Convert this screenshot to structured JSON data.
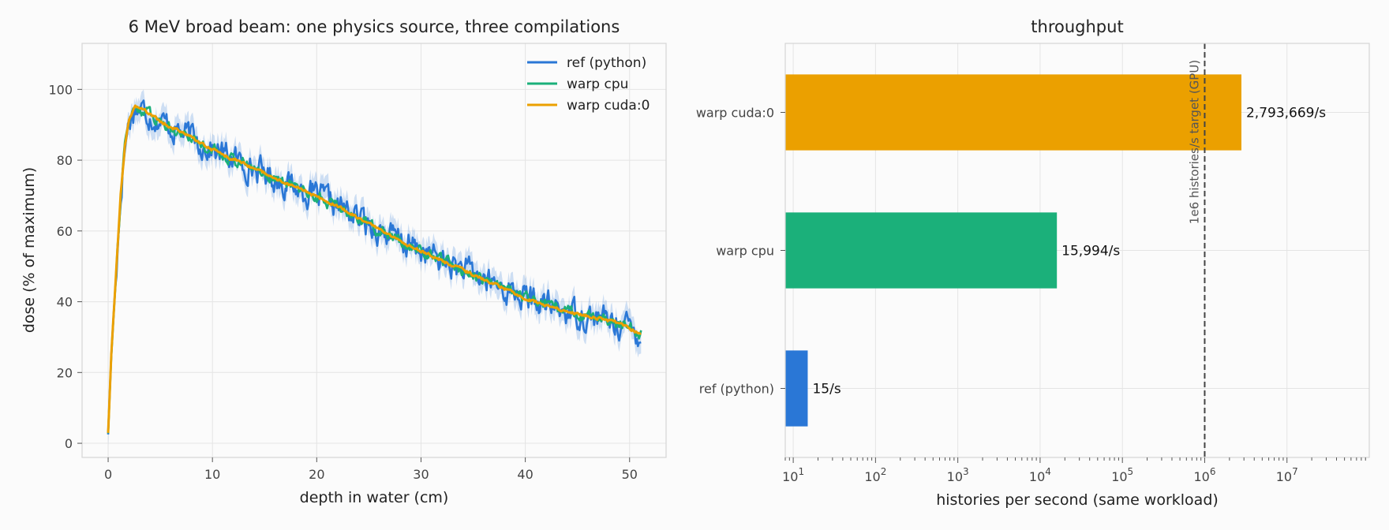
{
  "chart_data": [
    {
      "type": "line",
      "title": "6 MeV broad beam: one physics source, three compilations",
      "xlabel": "depth in water (cm)",
      "ylabel": "dose (% of maximum)",
      "xlim": [
        -2.5,
        53.5
      ],
      "ylim": [
        -4,
        113
      ],
      "xticks": [
        0,
        10,
        20,
        30,
        40,
        50
      ],
      "yticks": [
        0,
        20,
        40,
        60,
        80,
        100
      ],
      "grid": true,
      "legend_position": "top-right",
      "depth_step_cm": 0.1,
      "depth_range_cm": [
        0,
        51.1
      ],
      "profile_anchors": {
        "depth": [
          0,
          0.3,
          0.8,
          1.2,
          1.6,
          2.0,
          2.6,
          3.5,
          5,
          7,
          10,
          13,
          16,
          19,
          22,
          25,
          28,
          31,
          34,
          37,
          40,
          43,
          46,
          49,
          51
        ],
        "dose": [
          3,
          25,
          50,
          70,
          84,
          91,
          95,
          94,
          91,
          88,
          83,
          79,
          75,
          71,
          67,
          62,
          57,
          53,
          49,
          45,
          41,
          38,
          36,
          34,
          31
        ]
      },
      "series": [
        {
          "name": "ref (python)",
          "color": "#2a77d6",
          "noise_amplitude": 7.0,
          "band": true
        },
        {
          "name": "warp cpu",
          "color": "#1bb07a",
          "noise_amplitude": 3.0,
          "band": false
        },
        {
          "name": "warp cuda:0",
          "color": "#eba000",
          "noise_amplitude": 0.8,
          "band": false
        }
      ]
    },
    {
      "type": "bar",
      "orientation": "horizontal",
      "title": "throughput",
      "xlabel": "histories per second (same workload)",
      "xscale": "log",
      "xlim": [
        8,
        100000000
      ],
      "categories": [
        "ref (python)",
        "warp cpu",
        "warp cuda:0"
      ],
      "values": [
        15,
        15994,
        2793669
      ],
      "value_labels": [
        "15/s",
        "15,994/s",
        "2,793,669/s"
      ],
      "colors": [
        "#2a77d6",
        "#1bb07a",
        "#eba000"
      ],
      "reference_line": {
        "value": 1000000,
        "label": "1e6 histories/s target (GPU)",
        "style": "dashed"
      },
      "grid": true
    }
  ]
}
